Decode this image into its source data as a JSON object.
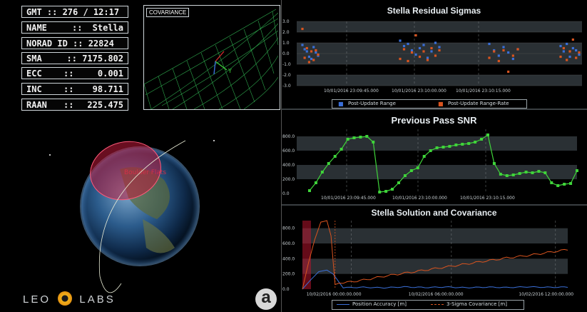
{
  "hud": {
    "gmt": {
      "label": "GMT :: 276 / 12:17"
    },
    "name": {
      "label": "NAME",
      "sep": "::",
      "value": "Stella"
    },
    "norad": {
      "label": "NORAD ID :: 22824"
    },
    "sma": {
      "label": "SMA",
      "value": ":: 7175.802"
    },
    "ecc": {
      "label": "ECC",
      "sep": "::",
      "value": "0.001"
    },
    "inc": {
      "label": "INC",
      "sep": "::",
      "value": "98.711"
    },
    "raan": {
      "label": "RAAN",
      "sep": "::",
      "value": "225.475"
    }
  },
  "covariance": {
    "label": "COVARIANCE",
    "axis_y": "Y"
  },
  "globe": {
    "region_label": "Boulder Flats"
  },
  "brand": {
    "logo_left": "LEO",
    "logo_right": "LABS",
    "mark": "a"
  },
  "colors": {
    "blue": "#3a6fd8",
    "orange": "#d9541f",
    "green": "#3fd43a",
    "band": "#2a3034",
    "accent_red": "#b8142d"
  },
  "chart_data": [
    {
      "type": "scatter",
      "title": "Stella Residual Sigmas",
      "ylim": [
        -3,
        3
      ],
      "yticks": [
        "3.0",
        "2.0",
        "1.0",
        "0.0",
        "-1.0",
        "-2.0",
        "-3.0"
      ],
      "xticks": [
        "10/01/2016 23:09:45.000",
        "10/01/2016 23:10:00.000",
        "10/01/2016 23:10:15.000"
      ],
      "legend_placement": "bottom",
      "series": [
        {
          "name": "Post-Update Range",
          "groups": [
            [
              0.8,
              0.4,
              0.2,
              -0.3,
              -0.5,
              0.6,
              0.1,
              -0.2
            ],
            [
              1.2,
              0.7,
              0.9,
              0.3,
              -0.1,
              0.5,
              0.8,
              -0.4,
              0.2,
              1.0,
              0.6
            ],
            [
              0.9,
              0.3,
              -0.2,
              0.6,
              0.1,
              -0.5,
              0.4
            ],
            [
              0.7,
              0.2,
              0.9,
              -0.3,
              0.5,
              0.3,
              -0.1
            ]
          ]
        },
        {
          "name": "Post-Update Range-Rate",
          "groups": [
            [
              2.3,
              -0.4,
              0.5,
              -0.8,
              0.2,
              -0.6,
              0.3,
              -0.1
            ],
            [
              -0.5,
              0.4,
              -0.7,
              0.1,
              1.7,
              -0.3,
              0.2,
              -0.6,
              0.5,
              -0.2,
              0.3
            ],
            [
              -0.4,
              0.2,
              -0.7,
              0.3,
              -1.7,
              -0.2,
              0.4
            ],
            [
              -0.3,
              0.5,
              -0.6,
              0.2,
              1.3,
              -0.4,
              0.1
            ]
          ]
        }
      ]
    },
    {
      "type": "line",
      "title": "Previous Pass SNR",
      "ylim": [
        0,
        900
      ],
      "yticks": [
        "800.0",
        "600.0",
        "400.0",
        "200.0",
        "0.0"
      ],
      "xticks": [
        "10/01/2016 23:09:45.000",
        "10/01/2016 23:10:00.000",
        "10/01/2016 23:10:15.000"
      ],
      "series": [
        {
          "name": "",
          "x": [
            0,
            1,
            2,
            3,
            4,
            5,
            6,
            7,
            8,
            9,
            10,
            11,
            12,
            13,
            14,
            15,
            16,
            17,
            18,
            19,
            20,
            21,
            22,
            23,
            24,
            25,
            26,
            27,
            28,
            29,
            30,
            31,
            32,
            33,
            34,
            35,
            36,
            37,
            38,
            39,
            40,
            41,
            42
          ],
          "y": [
            40,
            150,
            300,
            420,
            520,
            620,
            760,
            780,
            790,
            800,
            720,
            20,
            30,
            60,
            150,
            250,
            320,
            360,
            520,
            600,
            640,
            650,
            660,
            680,
            690,
            700,
            720,
            760,
            820,
            420,
            270,
            250,
            260,
            280,
            300,
            290,
            310,
            290,
            150,
            110,
            130,
            140,
            320
          ]
        }
      ]
    },
    {
      "type": "line",
      "title": "Stella Solution and Covariance",
      "ylim": [
        0,
        900
      ],
      "yticks": [
        "800.0",
        "600.0",
        "400.0",
        "200.0",
        "0.0"
      ],
      "xticks": [
        "10/02/2016 00:00:00.000",
        "10/02/2016 06:00:00.000",
        "10/02/2016 12:00:00.000"
      ],
      "legend_placement": "bottom",
      "series": [
        {
          "name": "Position Accuracy [m]",
          "x": [
            0,
            0.4,
            0.8,
            1.2,
            1.5,
            2,
            3,
            4,
            5,
            6,
            7,
            8,
            9,
            10,
            11,
            12,
            13
          ],
          "y": [
            0,
            120,
            230,
            250,
            200,
            20,
            25,
            18,
            30,
            22,
            28,
            20,
            26,
            22,
            30,
            24,
            28
          ]
        },
        {
          "name": "3-Sigma Covariance [m]",
          "x": [
            0,
            0.3,
            0.6,
            0.9,
            1.2,
            1.4,
            1.6,
            1.8,
            2.2,
            3,
            4,
            5,
            6,
            7,
            8,
            9,
            10,
            11,
            12,
            13
          ],
          "y": [
            0,
            350,
            650,
            880,
            900,
            700,
            60,
            80,
            90,
            120,
            170,
            210,
            250,
            290,
            330,
            370,
            410,
            440,
            480,
            520
          ]
        }
      ]
    }
  ]
}
